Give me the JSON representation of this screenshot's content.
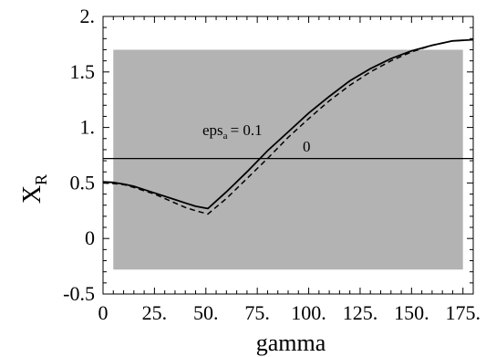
{
  "chart_data": {
    "type": "line",
    "xlabel": "gamma",
    "ylabel": {
      "main": "X",
      "sub": "R"
    },
    "xlim": [
      0,
      180
    ],
    "ylim": [
      -0.5,
      2.0
    ],
    "xticks": [
      0,
      25,
      50,
      75,
      100,
      125,
      150,
      175
    ],
    "xtick_labels": [
      "0",
      "25.",
      "50.",
      "75.",
      "100.",
      "125.",
      "150.",
      "175."
    ],
    "yticks": [
      -0.5,
      0,
      0.5,
      1.0,
      1.5,
      2.0
    ],
    "ytick_labels": [
      "-0.5",
      "0",
      "0.5",
      "1.",
      "1.5",
      "2."
    ],
    "grid": false,
    "shaded_region": {
      "x": [
        5,
        175
      ],
      "y": [
        -0.28,
        1.7
      ],
      "color": "#b3b3b3"
    },
    "reference_line": {
      "y": 0.72,
      "color": "#000000"
    },
    "series": [
      {
        "label_main": "eps",
        "label_sub": "a",
        "label_tail": "= 0.1",
        "style": "solid",
        "color": "#000000",
        "x": [
          0,
          5,
          10,
          15,
          20,
          25,
          30,
          35,
          40,
          45,
          51,
          60,
          70,
          80,
          90,
          100,
          110,
          120,
          130,
          140,
          150,
          160,
          170,
          180
        ],
        "y": [
          0.51,
          0.505,
          0.49,
          0.47,
          0.44,
          0.41,
          0.38,
          0.35,
          0.32,
          0.29,
          0.27,
          0.42,
          0.6,
          0.79,
          0.96,
          1.13,
          1.28,
          1.42,
          1.53,
          1.62,
          1.69,
          1.74,
          1.78,
          1.79
        ]
      },
      {
        "label_main": "0",
        "style": "dashed",
        "color": "#000000",
        "x": [
          0,
          5,
          10,
          15,
          20,
          25,
          30,
          35,
          40,
          45,
          51,
          60,
          70,
          80,
          90,
          100,
          110,
          120,
          130,
          140,
          150,
          160,
          170,
          180
        ],
        "y": [
          0.5,
          0.495,
          0.485,
          0.46,
          0.43,
          0.4,
          0.36,
          0.32,
          0.28,
          0.25,
          0.22,
          0.36,
          0.54,
          0.72,
          0.91,
          1.08,
          1.24,
          1.38,
          1.5,
          1.6,
          1.68,
          1.74,
          1.78,
          1.79
        ]
      }
    ]
  }
}
